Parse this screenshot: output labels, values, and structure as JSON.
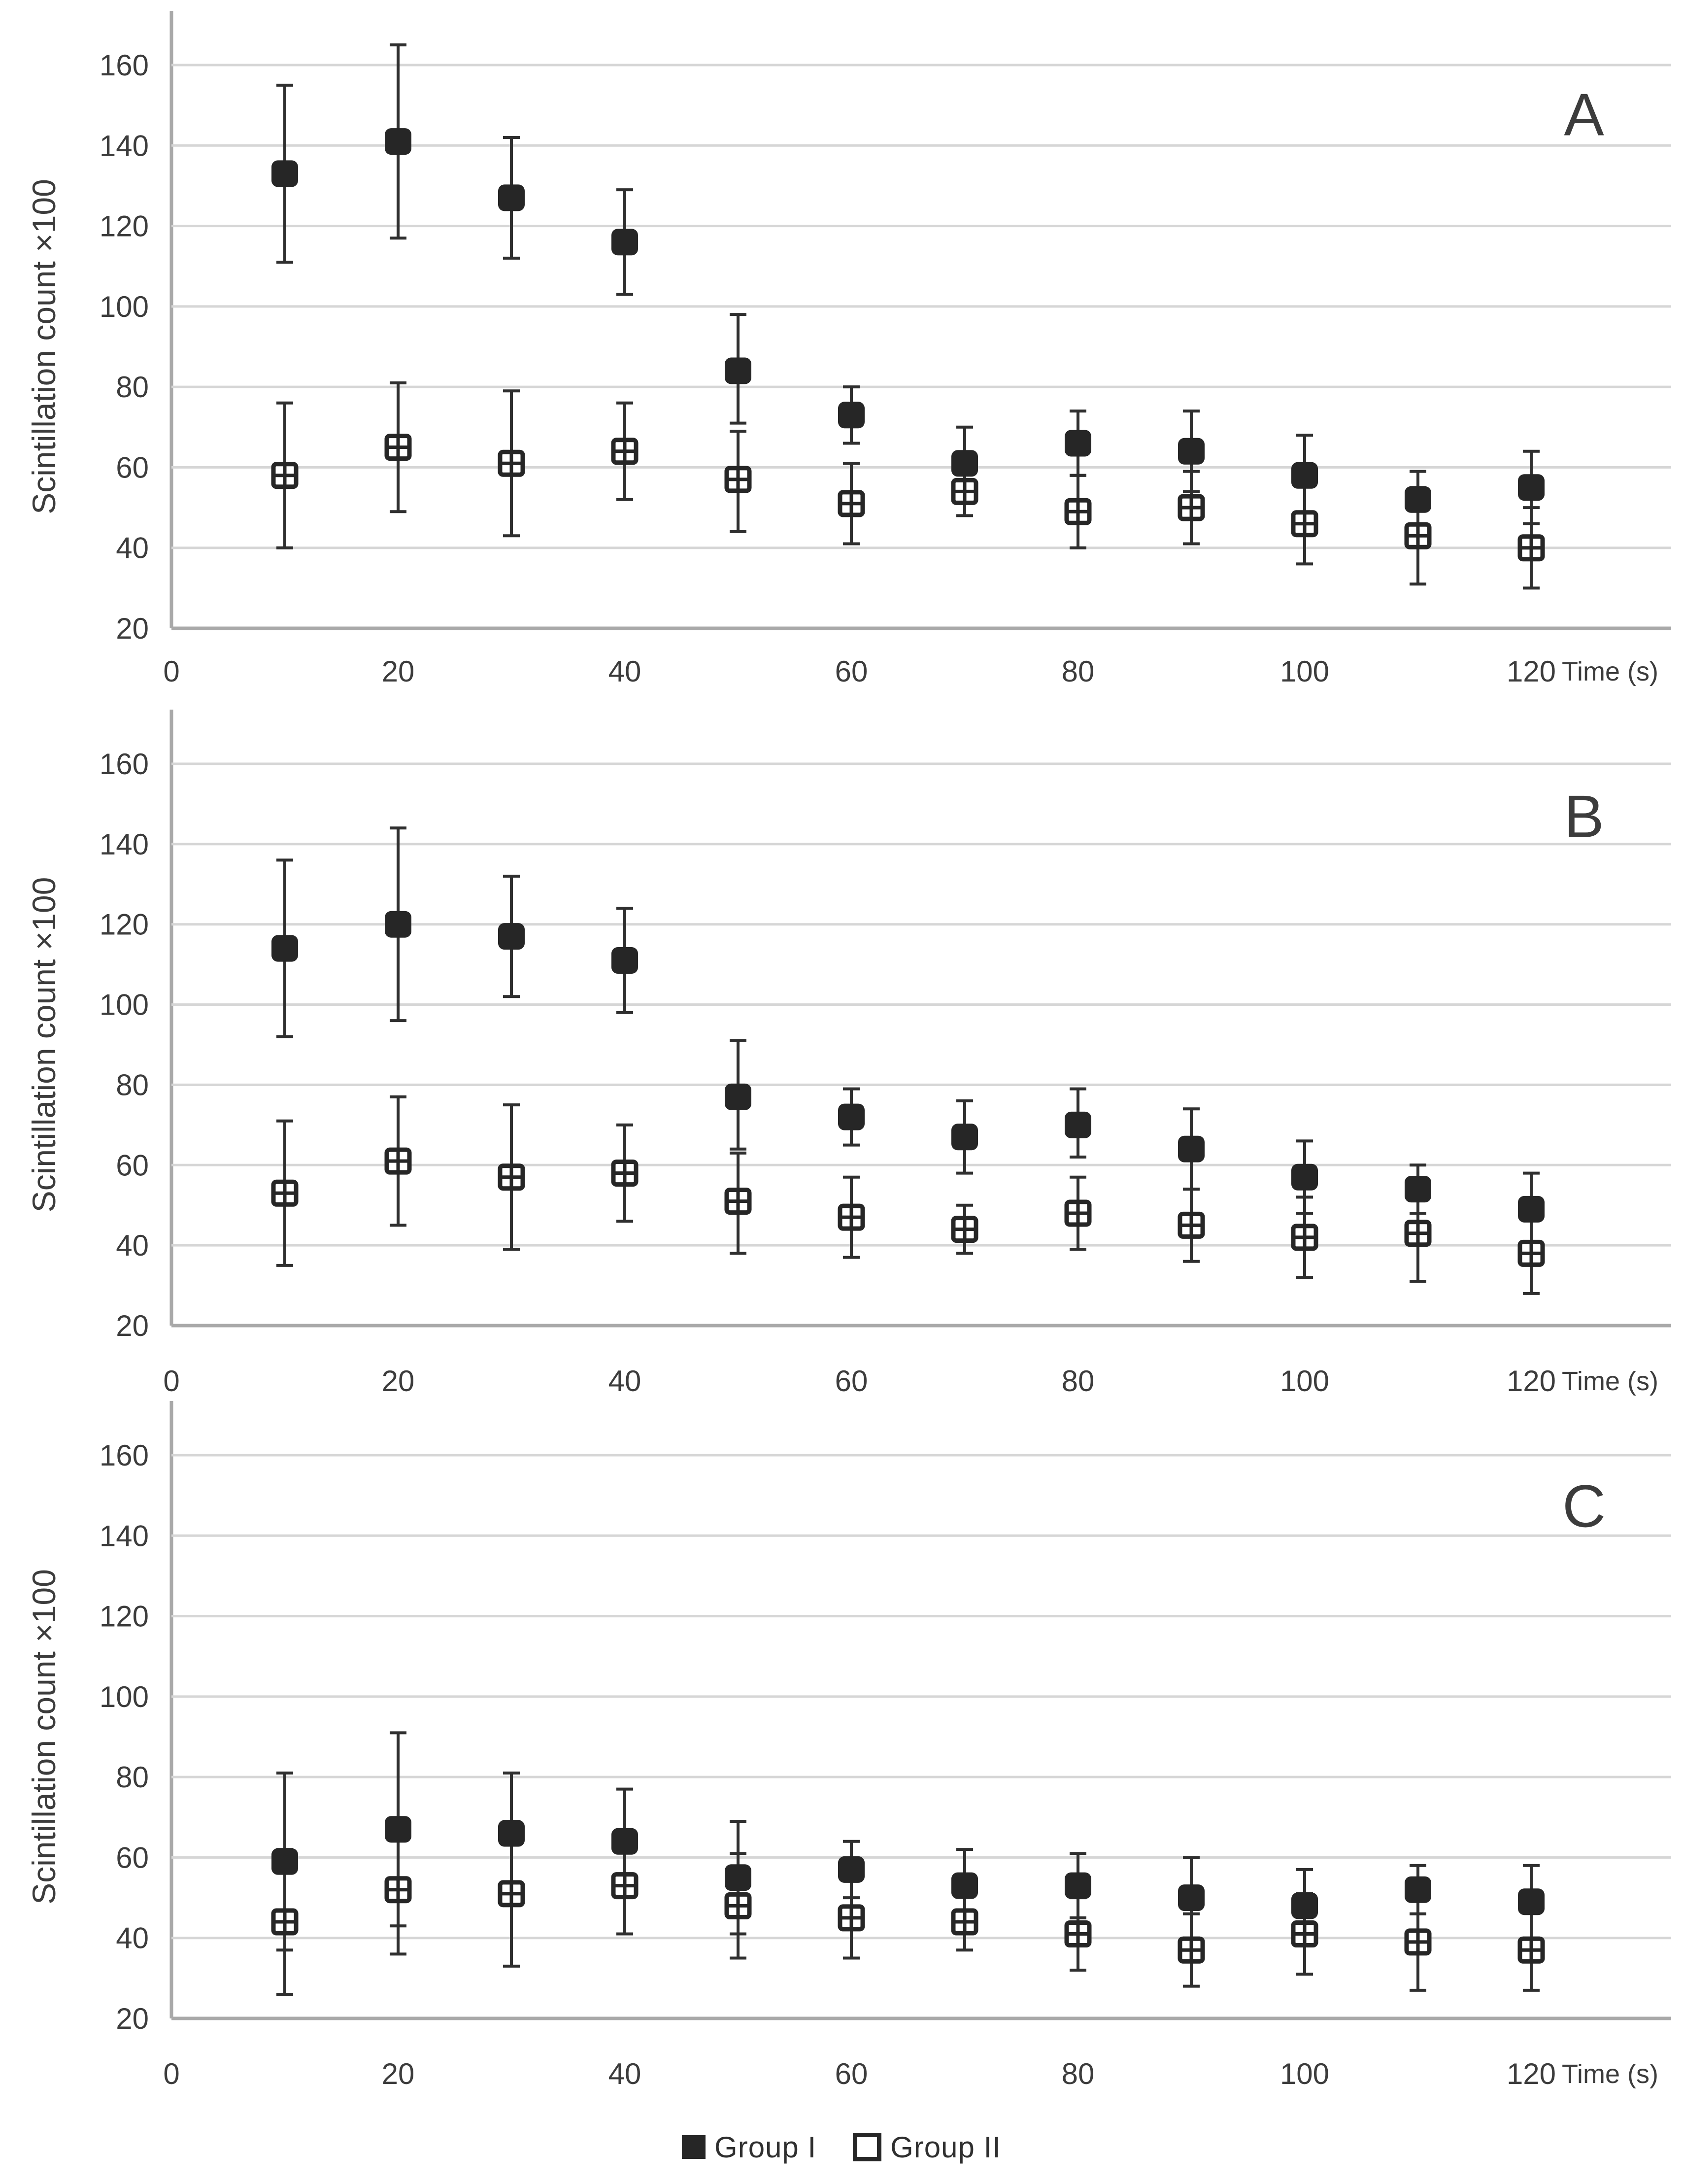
{
  "figure": {
    "type": "three-panel-errorbar-scatter-figure",
    "legend": {
      "items": [
        {
          "symbol": "filled-square",
          "label": "Group I"
        },
        {
          "symbol": "open-square",
          "label": "Group II"
        }
      ]
    },
    "style": {
      "marker_color": "#262626",
      "error_bar_color": "#2f2f2f",
      "gridline_color": "#d6d6d6",
      "axis_line_color": "#a9a9a9",
      "text_color": "#3c3c3c",
      "background": "#ffffff"
    }
  },
  "chart_data": [
    {
      "type": "scatter",
      "panel_label": "A",
      "xlabel": "Time (s)",
      "ylabel": "Scintillation count ×100",
      "x_ticks": [
        0,
        20,
        40,
        60,
        80,
        100,
        120
      ],
      "y_ticks": [
        160,
        140,
        120,
        100,
        80,
        60,
        40,
        20
      ],
      "xlim": [
        0,
        133
      ],
      "ylim": [
        20,
        175
      ],
      "grid": "horizontal",
      "legend_position": "bottom",
      "x": [
        10,
        20,
        30,
        40,
        50,
        60,
        70,
        80,
        90,
        100,
        110,
        120
      ],
      "series": [
        {
          "name": "Group I",
          "marker": "filled-square",
          "values": [
            133,
            141,
            127,
            116,
            84,
            73,
            61,
            66,
            64,
            58,
            52,
            55
          ],
          "err_high": [
            155,
            165,
            142,
            129,
            98,
            80,
            70,
            74,
            74,
            68,
            59,
            64
          ],
          "err_low": [
            111,
            117,
            112,
            103,
            71,
            66,
            52,
            58,
            54,
            48,
            46,
            46
          ]
        },
        {
          "name": "Group II",
          "marker": "open-square",
          "values": [
            58,
            65,
            61,
            64,
            57,
            51,
            54,
            49,
            50,
            46,
            43,
            40
          ],
          "err_high": [
            76,
            81,
            79,
            76,
            69,
            61,
            60,
            58,
            59,
            56,
            55,
            50
          ],
          "err_low": [
            40,
            49,
            43,
            52,
            44,
            41,
            48,
            40,
            41,
            36,
            31,
            30
          ]
        }
      ]
    },
    {
      "type": "scatter",
      "panel_label": "B",
      "xlabel": "Time (s)",
      "ylabel": "Scintillation count ×100",
      "x_ticks": [
        0,
        20,
        40,
        60,
        80,
        100,
        120
      ],
      "y_ticks": [
        160,
        140,
        120,
        100,
        80,
        60,
        40,
        20
      ],
      "xlim": [
        0,
        133
      ],
      "ylim": [
        20,
        175
      ],
      "grid": "horizontal",
      "legend_position": "bottom",
      "x": [
        10,
        20,
        30,
        40,
        50,
        60,
        70,
        80,
        90,
        100,
        110,
        120
      ],
      "series": [
        {
          "name": "Group I",
          "marker": "filled-square",
          "values": [
            114,
            120,
            117,
            111,
            77,
            72,
            67,
            70,
            64,
            57,
            54,
            49
          ],
          "err_high": [
            136,
            144,
            132,
            124,
            91,
            79,
            76,
            79,
            74,
            66,
            60,
            58
          ],
          "err_low": [
            92,
            96,
            102,
            98,
            64,
            65,
            58,
            62,
            54,
            48,
            48,
            40
          ]
        },
        {
          "name": "Group II",
          "marker": "open-square",
          "values": [
            53,
            61,
            57,
            58,
            51,
            47,
            44,
            48,
            45,
            42,
            43,
            38
          ],
          "err_high": [
            71,
            77,
            75,
            70,
            63,
            57,
            50,
            57,
            54,
            52,
            55,
            48
          ],
          "err_low": [
            35,
            45,
            39,
            46,
            38,
            37,
            38,
            39,
            36,
            32,
            31,
            28
          ]
        }
      ]
    },
    {
      "type": "scatter",
      "panel_label": "C",
      "xlabel": "Time (s)",
      "ylabel": "Scintillation count ×100",
      "x_ticks": [
        0,
        20,
        40,
        60,
        80,
        100,
        120
      ],
      "y_ticks": [
        160,
        140,
        120,
        100,
        80,
        60,
        40,
        20
      ],
      "xlim": [
        0,
        133
      ],
      "ylim": [
        20,
        175
      ],
      "grid": "horizontal",
      "legend_position": "bottom",
      "x": [
        10,
        20,
        30,
        40,
        50,
        60,
        70,
        80,
        90,
        100,
        110,
        120
      ],
      "series": [
        {
          "name": "Group I",
          "marker": "filled-square",
          "values": [
            59,
            67,
            66,
            64,
            55,
            57,
            53,
            53,
            50,
            48,
            52,
            49
          ],
          "err_high": [
            81,
            91,
            81,
            77,
            69,
            64,
            62,
            61,
            60,
            57,
            58,
            58
          ],
          "err_low": [
            37,
            43,
            51,
            51,
            41,
            50,
            44,
            45,
            40,
            39,
            46,
            40
          ]
        },
        {
          "name": "Group II",
          "marker": "open-square",
          "values": [
            44,
            52,
            51,
            53,
            48,
            45,
            44,
            41,
            37,
            41,
            39,
            37
          ],
          "err_high": [
            62,
            68,
            69,
            65,
            61,
            55,
            51,
            50,
            46,
            51,
            51,
            47
          ],
          "err_low": [
            26,
            36,
            33,
            41,
            35,
            35,
            37,
            32,
            28,
            31,
            27,
            27
          ]
        }
      ]
    }
  ]
}
